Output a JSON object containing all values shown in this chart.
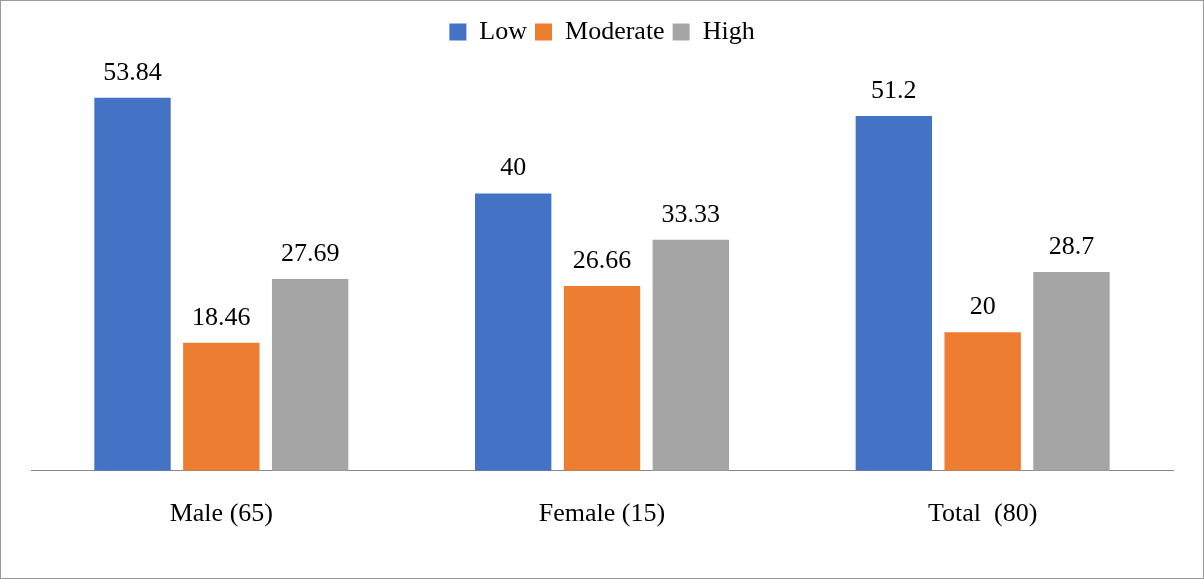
{
  "chart_data": {
    "type": "bar",
    "categories": [
      "Male (65)",
      "Female (15)",
      "Total  (80)"
    ],
    "series": [
      {
        "name": "Low",
        "color": "#4472c4",
        "values": [
          53.84,
          40,
          51.2
        ]
      },
      {
        "name": "Moderate",
        "color": "#ed7d31",
        "values": [
          18.46,
          26.66,
          20
        ]
      },
      {
        "name": "High",
        "color": "#a5a5a5",
        "values": [
          27.69,
          33.33,
          28.7
        ]
      }
    ],
    "data_labels": true,
    "legend": "top",
    "grid": false
  }
}
